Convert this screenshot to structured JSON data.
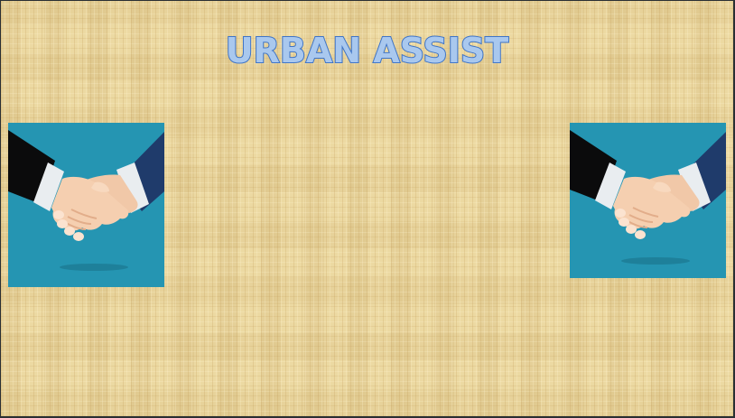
{
  "slide": {
    "title": "URBAN ASSIST",
    "title_color": "#a9c8ee",
    "title_outline_color": "#3f74c6",
    "background_color": "#ecd9a2"
  },
  "images": {
    "left": {
      "icon": "handshake-icon",
      "background_color": "#2595b2"
    },
    "right": {
      "icon": "handshake-icon",
      "background_color": "#2595b2"
    }
  }
}
